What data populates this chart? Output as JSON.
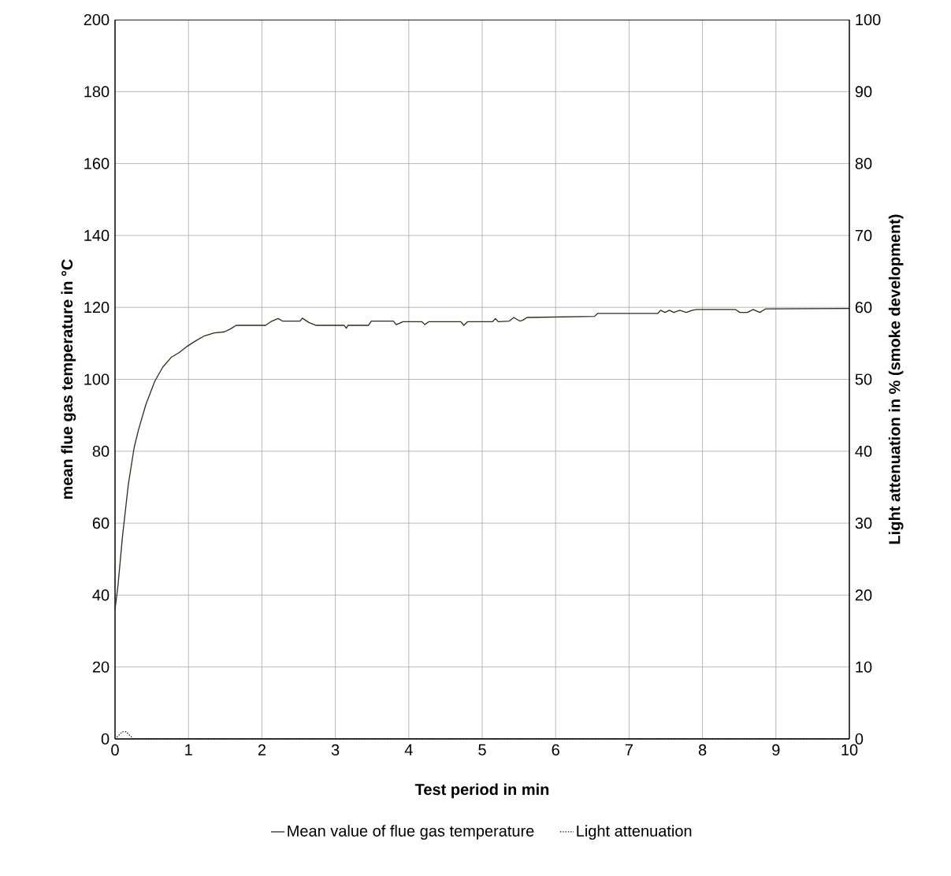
{
  "chart_data": {
    "type": "line",
    "xlabel": "Test period in min",
    "ylabel": "mean flue gas temperature in °C",
    "y2label": "Light attenuation in % (smoke development)",
    "xlim": [
      0,
      10
    ],
    "ylim": [
      0,
      200
    ],
    "y2lim": [
      0,
      100
    ],
    "xticks": [
      0,
      1,
      2,
      3,
      4,
      5,
      6,
      7,
      8,
      9,
      10
    ],
    "yticks": [
      0,
      20,
      40,
      60,
      80,
      100,
      120,
      140,
      160,
      180,
      200
    ],
    "y2ticks": [
      0,
      10,
      20,
      30,
      40,
      50,
      60,
      70,
      80,
      90,
      100
    ],
    "grid": true,
    "legend": "bottom",
    "series": [
      {
        "name": "Mean value of flue gas temperature",
        "color": "#2b2b22",
        "line_style": "solid",
        "x": [
          0,
          0.04,
          0.1,
          0.18,
          0.26,
          0.32,
          0.42,
          0.54,
          0.65,
          0.77,
          0.87,
          0.97,
          1.09,
          1.21,
          1.35,
          1.49,
          1.57,
          1.65,
          2.05,
          2.12,
          2.22,
          2.28,
          2.52,
          2.55,
          2.64,
          2.74,
          3.12,
          3.15,
          3.17,
          3.45,
          3.49,
          3.79,
          3.83,
          3.92,
          4.18,
          4.22,
          4.27,
          4.71,
          4.75,
          4.8,
          5.14,
          5.18,
          5.22,
          5.37,
          5.43,
          5.51,
          5.55,
          5.61,
          6.53,
          6.57,
          7.39,
          7.43,
          7.49,
          7.55,
          7.61,
          7.69,
          7.78,
          7.86,
          7.92,
          8.45,
          8.51,
          8.61,
          8.69,
          8.78,
          8.86,
          10
        ],
        "values": [
          36,
          42.6,
          56,
          70.6,
          81,
          86,
          93,
          99.4,
          103.4,
          106.2,
          107.4,
          109,
          110.6,
          112,
          112.9,
          113.2,
          114,
          115,
          115,
          116,
          116.9,
          116.2,
          116.2,
          117,
          115.8,
          115,
          115,
          114.2,
          115,
          115,
          116.2,
          116.2,
          115.2,
          116,
          116,
          115.2,
          116,
          116,
          115,
          116,
          116,
          116.9,
          116,
          116.2,
          117.2,
          116.2,
          116.4,
          117.2,
          117.5,
          118.3,
          118.3,
          119.2,
          118.6,
          119.2,
          118.6,
          119.2,
          118.6,
          119.2,
          119.4,
          119.4,
          118.6,
          118.6,
          119.4,
          118.6,
          119.6,
          119.7
        ]
      },
      {
        "name": "Light attenuation",
        "color": "#000000",
        "line_style": "dotted",
        "axis": "y2",
        "x": [
          0,
          0.1,
          0.15,
          0.25,
          10
        ],
        "values": [
          0,
          1,
          1,
          0,
          0
        ]
      }
    ]
  }
}
